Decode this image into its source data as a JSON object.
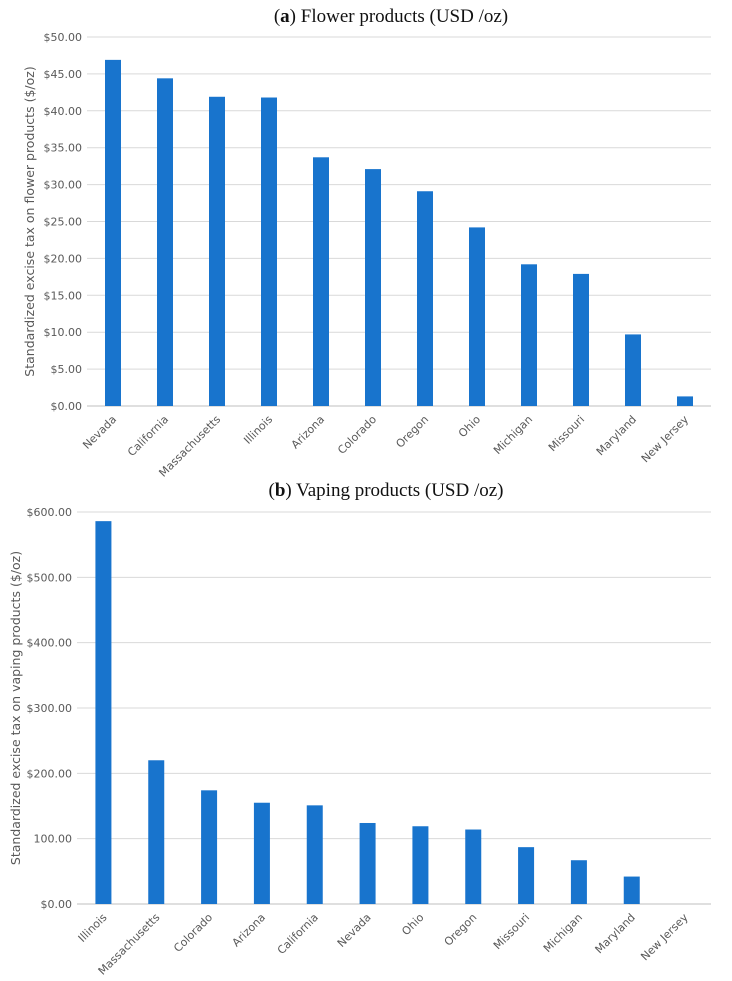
{
  "chart_data": [
    {
      "type": "bar",
      "title_label": "a",
      "title_text": "Flower products (USD /oz)",
      "xlabel": "",
      "ylabel": "Standardized excise tax on flower products ($/oz)",
      "categories": [
        "Nevada",
        "California",
        "Massachusetts",
        "Illinois",
        "Arizona",
        "Colorado",
        "Oregon",
        "Ohio",
        "Michigan",
        "Missouri",
        "Maryland",
        "New Jersey"
      ],
      "values": [
        46.9,
        44.4,
        41.9,
        41.8,
        33.7,
        32.1,
        29.1,
        24.2,
        19.2,
        17.9,
        9.7,
        1.3
      ],
      "ylim": [
        0,
        50
      ],
      "yticks": [
        "$0.00",
        "$5.00",
        "$10.00",
        "$15.00",
        "$20.00",
        "$25.00",
        "$30.00",
        "$35.00",
        "$40.00",
        "$45.00",
        "$50.00"
      ],
      "grid": true,
      "bar_color": "#1874cd"
    },
    {
      "type": "bar",
      "title_label": "b",
      "title_text": "Vaping products (USD /oz)",
      "xlabel": "",
      "ylabel": "Standardized excise tax on vaping products ($/oz)",
      "categories": [
        "Illinois",
        "Massachusetts",
        "Colorado",
        "Arizona",
        "California",
        "Nevada",
        "Ohio",
        "Oregon",
        "Missouri",
        "Michigan",
        "Maryland",
        "New Jersey"
      ],
      "values": [
        586,
        220,
        174,
        155,
        151,
        124,
        119,
        114,
        87,
        67,
        42,
        0
      ],
      "ylim": [
        0,
        600
      ],
      "yticks": [
        "$0.00",
        "100.00",
        "$200.00",
        "$300.00",
        "$400.00",
        "$500.00",
        "$600.00"
      ],
      "grid": true,
      "bar_color": "#1874cd"
    }
  ]
}
